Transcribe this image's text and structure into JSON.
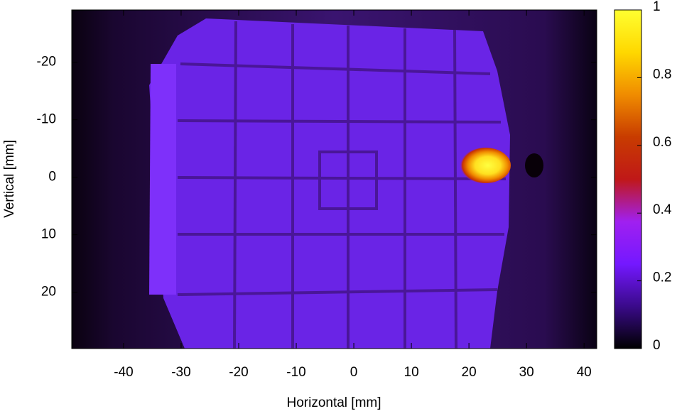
{
  "chart_data": {
    "type": "heatmap",
    "xlabel": "Horizontal [mm]",
    "ylabel": "Vertical [mm]",
    "xlim": [
      -49,
      42.2
    ],
    "xticks": [
      -40,
      -30,
      -20,
      -10,
      0,
      10,
      20,
      30,
      40
    ],
    "ylim": [
      -29.1,
      29.8
    ],
    "yticks": [
      -20,
      -10,
      0,
      10,
      20
    ],
    "yreverse": true,
    "colorbar": {
      "lim": [
        0,
        1
      ],
      "ticks": [
        0,
        0.2,
        0.4,
        0.6,
        0.8,
        1
      ],
      "colors": [
        "#000000",
        "#3a0a8a",
        "#7418ff",
        "#a020f0",
        "#c01818",
        "#c83c00",
        "#f08c00",
        "#ffd800",
        "#ffff30"
      ]
    }
  }
}
